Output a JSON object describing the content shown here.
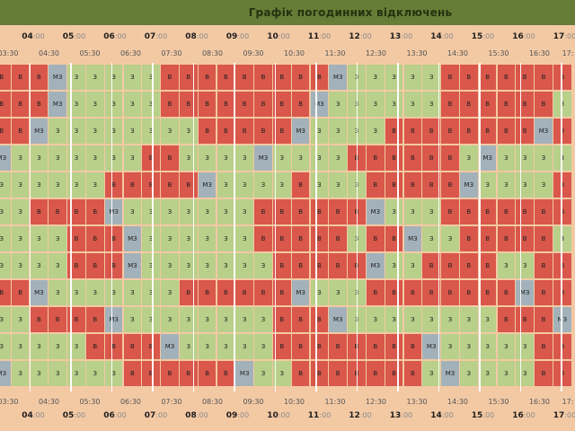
{
  "title": "Графік погодинних відключень",
  "hours_top": [
    {
      "h": "04",
      "m": ":00"
    },
    {
      "h": "05",
      "m": ":00"
    },
    {
      "h": "06",
      "m": ":00"
    },
    {
      "h": "07",
      "m": ":00"
    },
    {
      "h": "08",
      "m": ":00"
    },
    {
      "h": "09",
      "m": ":00"
    },
    {
      "h": "10",
      "m": ":00"
    },
    {
      "h": "11",
      "m": ":00"
    },
    {
      "h": "12",
      "m": ":00"
    },
    {
      "h": "13",
      "m": ":00"
    },
    {
      "h": "14",
      "m": ":00"
    },
    {
      "h": "15",
      "m": ":00"
    },
    {
      "h": "16",
      "m": ":00"
    },
    {
      "h": "17",
      "m": ":00"
    }
  ],
  "halves": [
    "03:30",
    "04:30",
    "05:30",
    "06:30",
    "07:30",
    "08:30",
    "09:30",
    "10:30",
    "11:30",
    "12:30",
    "13:30",
    "14:30",
    "15:30",
    "16:30",
    "17:"
  ],
  "legend": {
    "v": "В",
    "z": "З",
    "m": "МЗ"
  },
  "colors": {
    "off": "#d9574b",
    "on": "#b8d08a",
    "maybe": "#a3b2ba",
    "header": "#667d37",
    "background": "#f3c9a4"
  },
  "rows": [
    "vvvmzzzzzvvvvvvvvvmzzzzzvvvvvvv",
    "vvvmzzzzzvvvvvvvvmzzzzzzvvvvvvz",
    "vvmzzzzzzzzvvvvvmzzzzvvvvvvvvmv",
    "mzzzzzzzvvzzzzmzzzzvvvvvvzmzzzz",
    "zzzzzzvvvvvmzzzzvzzzvvvvvmzzzzv",
    "zzvvvvmzzzzzzzvvvvvvmzzzvvvvvvv",
    "zzzzvvvmzzzzzzvvvvvzvvmzzvvvvvz",
    "zzzzvvvmzzzzzzzvvvvvmzzvvvvzzvv",
    "vvmzzzzzzzvvvvvvmzzzvvvvvvvvmvv",
    "zzvvvvmzzzzzzzzvvvmzzzzzzzzvvvm",
    "zzzzzvvvvmzzzzzvvvvvvvvmzzzzzvv",
    "mzzzzzzvvvvvvmzzvvvvvvvzmzzzzvv"
  ]
}
